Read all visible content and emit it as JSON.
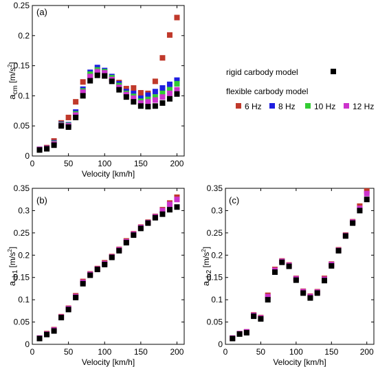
{
  "legend": {
    "rigid_label": "rigid carbody model",
    "flexible_label": "flexible carbody model",
    "entries": [
      {
        "label": "6 Hz",
        "color": "#c0392b"
      },
      {
        "label": "8 Hz",
        "color": "#1f1fe0"
      },
      {
        "label": "10 Hz",
        "color": "#33cc33"
      },
      {
        "label": "12 Hz",
        "color": "#cc33cc"
      }
    ],
    "rigid_color": "#000000"
  },
  "chart_data": [
    {
      "id": "a",
      "type": "scatter",
      "panel_label": "(a)",
      "xlabel": "Velocity [km/h]",
      "ylabel_main": "a",
      "ylabel_sub": "cm",
      "ylabel_unit": "[m/s",
      "ylabel_sup": "2",
      "ylabel_end": "]",
      "xlim": [
        0,
        210
      ],
      "ylim": [
        0,
        0.25
      ],
      "xticks": [
        0,
        50,
        100,
        150,
        200
      ],
      "yticks": [
        0,
        0.05,
        0.1,
        0.15,
        0.2,
        0.25
      ],
      "ytick_labels": [
        "0",
        "0.05",
        "0.1",
        "0.15",
        "0.2",
        "0.25"
      ],
      "x": [
        10,
        20,
        30,
        40,
        50,
        60,
        70,
        80,
        90,
        100,
        110,
        120,
        130,
        140,
        150,
        160,
        170,
        180,
        190,
        200
      ],
      "series": [
        {
          "name": "6 Hz",
          "color": "#c0392b",
          "values": [
            0.011,
            0.014,
            0.025,
            0.055,
            0.064,
            0.09,
            0.123,
            0.133,
            0.137,
            0.133,
            0.128,
            0.122,
            0.112,
            0.113,
            0.105,
            0.104,
            0.124,
            0.163,
            0.201,
            0.23
          ]
        },
        {
          "name": "8 Hz",
          "color": "#1f1fe0",
          "values": [
            0.011,
            0.013,
            0.022,
            0.053,
            0.052,
            0.073,
            0.111,
            0.139,
            0.147,
            0.142,
            0.132,
            0.12,
            0.107,
            0.104,
            0.096,
            0.101,
            0.107,
            0.113,
            0.119,
            0.126
          ]
        },
        {
          "name": "10 Hz",
          "color": "#33cc33",
          "values": [
            0.011,
            0.013,
            0.021,
            0.052,
            0.051,
            0.07,
            0.108,
            0.136,
            0.143,
            0.14,
            0.13,
            0.117,
            0.104,
            0.099,
            0.091,
            0.094,
            0.098,
            0.104,
            0.11,
            0.12
          ]
        },
        {
          "name": "12 Hz",
          "color": "#cc33cc",
          "values": [
            0.011,
            0.013,
            0.02,
            0.051,
            0.05,
            0.068,
            0.106,
            0.132,
            0.14,
            0.138,
            0.127,
            0.114,
            0.102,
            0.096,
            0.088,
            0.09,
            0.093,
            0.098,
            0.104,
            0.11
          ]
        },
        {
          "name": "rigid carbody model",
          "color": "#000000",
          "values": [
            0.01,
            0.012,
            0.018,
            0.05,
            0.048,
            0.064,
            0.1,
            0.125,
            0.134,
            0.133,
            0.124,
            0.11,
            0.098,
            0.09,
            0.083,
            0.082,
            0.083,
            0.088,
            0.095,
            0.103
          ]
        }
      ]
    },
    {
      "id": "b",
      "type": "scatter",
      "panel_label": "(b)",
      "xlabel": "Velocity [km/h]",
      "ylabel_main": "a",
      "ylabel_sub": "cb1",
      "ylabel_unit": "[m/s",
      "ylabel_sup": "2",
      "ylabel_end": "]",
      "xlim": [
        0,
        210
      ],
      "ylim": [
        0,
        0.35
      ],
      "xticks": [
        0,
        50,
        100,
        150,
        200
      ],
      "yticks": [
        0,
        0.05,
        0.1,
        0.15,
        0.2,
        0.25,
        0.3,
        0.35
      ],
      "ytick_labels": [
        "0",
        "0.05",
        "0.1",
        "0.15",
        "0.2",
        "0.25",
        "0.3",
        "0.35"
      ],
      "x": [
        10,
        20,
        30,
        40,
        50,
        60,
        70,
        80,
        90,
        100,
        110,
        120,
        130,
        140,
        150,
        160,
        170,
        180,
        190,
        200
      ],
      "series": [
        {
          "name": "6 Hz",
          "color": "#c0392b",
          "values": [
            0.014,
            0.024,
            0.033,
            0.062,
            0.081,
            0.109,
            0.141,
            0.158,
            0.17,
            0.183,
            0.197,
            0.213,
            0.232,
            0.248,
            0.263,
            0.274,
            0.287,
            0.302,
            0.317,
            0.33
          ]
        },
        {
          "name": "12 Hz",
          "color": "#cc33cc",
          "values": [
            0.014,
            0.023,
            0.032,
            0.061,
            0.08,
            0.107,
            0.139,
            0.157,
            0.169,
            0.181,
            0.196,
            0.212,
            0.23,
            0.247,
            0.262,
            0.273,
            0.286,
            0.3,
            0.314,
            0.325
          ]
        },
        {
          "name": "rigid carbody model",
          "color": "#000000",
          "values": [
            0.013,
            0.022,
            0.03,
            0.06,
            0.078,
            0.105,
            0.136,
            0.155,
            0.168,
            0.179,
            0.195,
            0.21,
            0.228,
            0.245,
            0.26,
            0.272,
            0.284,
            0.292,
            0.302,
            0.308
          ]
        }
      ]
    },
    {
      "id": "c",
      "type": "scatter",
      "panel_label": "(c)",
      "xlabel": "Velocity [km/h]",
      "ylabel_main": "a",
      "ylabel_sub": "cb2",
      "ylabel_unit": "[m/s",
      "ylabel_sup": "2",
      "ylabel_end": "]",
      "xlim": [
        0,
        210
      ],
      "ylim": [
        0,
        0.35
      ],
      "xticks": [
        0,
        50,
        100,
        150,
        200
      ],
      "yticks": [
        0,
        0.05,
        0.1,
        0.15,
        0.2,
        0.25,
        0.3,
        0.35
      ],
      "ytick_labels": [
        "0",
        "0.05",
        "0.1",
        "0.15",
        "0.2",
        "0.25",
        "0.3",
        "0.35"
      ],
      "x": [
        10,
        20,
        30,
        40,
        50,
        60,
        70,
        80,
        90,
        100,
        110,
        120,
        130,
        140,
        150,
        160,
        170,
        180,
        190,
        200
      ],
      "series": [
        {
          "name": "6 Hz",
          "color": "#c0392b",
          "values": [
            0.014,
            0.024,
            0.028,
            0.066,
            0.06,
            0.11,
            0.168,
            0.187,
            0.178,
            0.148,
            0.119,
            0.108,
            0.118,
            0.148,
            0.18,
            0.212,
            0.245,
            0.275,
            0.31,
            0.344
          ]
        },
        {
          "name": "12 Hz",
          "color": "#cc33cc",
          "values": [
            0.014,
            0.024,
            0.028,
            0.065,
            0.059,
            0.107,
            0.166,
            0.186,
            0.177,
            0.147,
            0.118,
            0.107,
            0.117,
            0.146,
            0.179,
            0.211,
            0.244,
            0.274,
            0.305,
            0.338
          ]
        },
        {
          "name": "rigid carbody model",
          "color": "#000000",
          "values": [
            0.013,
            0.023,
            0.026,
            0.063,
            0.057,
            0.1,
            0.162,
            0.184,
            0.175,
            0.144,
            0.115,
            0.104,
            0.115,
            0.143,
            0.176,
            0.21,
            0.243,
            0.272,
            0.3,
            0.325
          ]
        }
      ]
    }
  ]
}
